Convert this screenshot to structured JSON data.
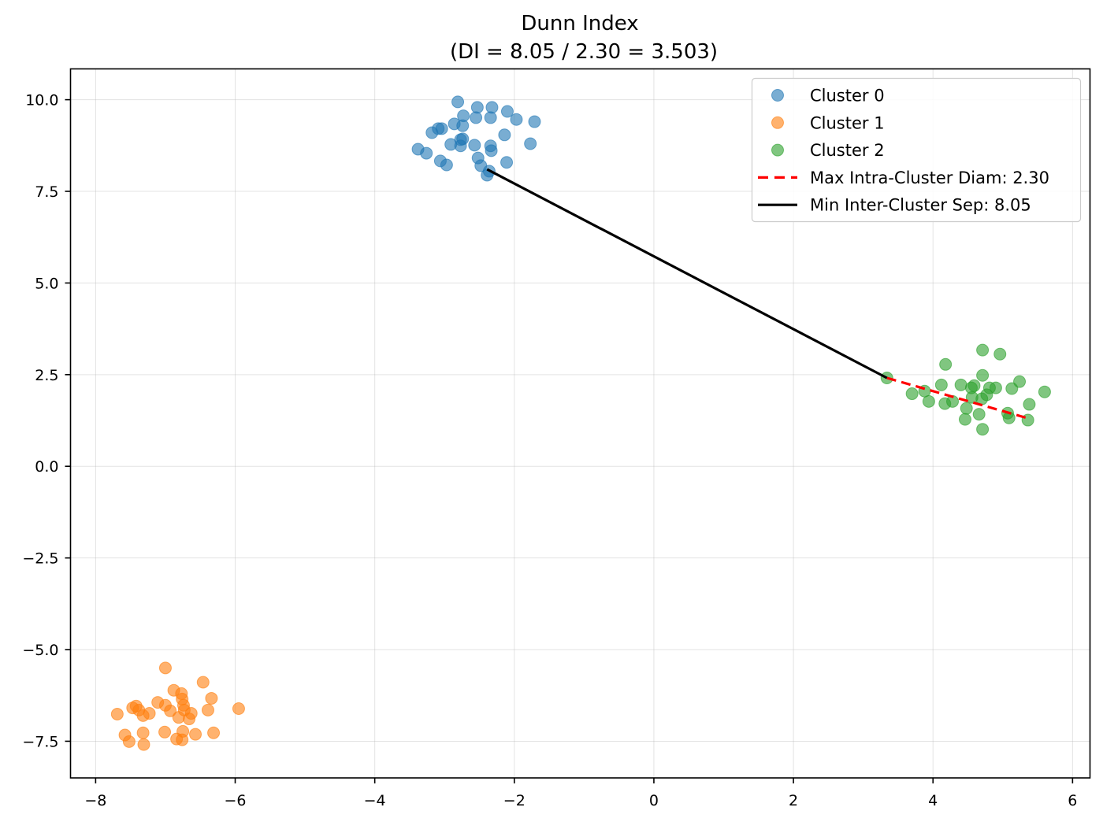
{
  "chart_data": {
    "type": "scatter",
    "title": "Dunn Index",
    "subtitle": "(DI = 8.05 / 2.30 = 3.503)",
    "xlabel": "",
    "ylabel": "",
    "xlim": [
      -8.36,
      6.25
    ],
    "ylim": [
      -8.5,
      10.84
    ],
    "grid": true,
    "legend_position": "upper right",
    "x_ticks": [
      -8,
      -6,
      -4,
      -2,
      0,
      2,
      4,
      6
    ],
    "x_tick_labels": [
      "−8",
      "−6",
      "−4",
      "−2",
      "0",
      "2",
      "4",
      "6"
    ],
    "y_ticks": [
      10.0,
      7.5,
      5.0,
      2.5,
      0.0,
      -2.5,
      -5.0,
      -7.5
    ],
    "y_tick_labels": [
      "10.0",
      "7.5",
      "5.0",
      "2.5",
      "0.0",
      "−2.5",
      "−5.0",
      "−7.5"
    ],
    "series": [
      {
        "name": "Cluster 0",
        "color": "#1f77b4",
        "points": [
          [
            -2.81,
            9.94
          ],
          [
            -2.53,
            9.79
          ],
          [
            -2.32,
            9.79
          ],
          [
            -2.1,
            9.68
          ],
          [
            -1.97,
            9.46
          ],
          [
            -1.71,
            9.4
          ],
          [
            -2.73,
            9.56
          ],
          [
            -2.55,
            9.51
          ],
          [
            -2.34,
            9.51
          ],
          [
            -2.86,
            9.34
          ],
          [
            -2.74,
            9.29
          ],
          [
            -3.04,
            9.21
          ],
          [
            -3.18,
            9.1
          ],
          [
            -3.09,
            9.21
          ],
          [
            -2.77,
            8.91
          ],
          [
            -2.14,
            9.04
          ],
          [
            -2.91,
            8.78
          ],
          [
            -2.77,
            8.74
          ],
          [
            -2.57,
            8.76
          ],
          [
            -2.34,
            8.74
          ],
          [
            -1.77,
            8.8
          ],
          [
            -3.38,
            8.65
          ],
          [
            -3.26,
            8.54
          ],
          [
            -2.33,
            8.61
          ],
          [
            -2.52,
            8.41
          ],
          [
            -3.06,
            8.33
          ],
          [
            -2.97,
            8.22
          ],
          [
            -2.48,
            8.2
          ],
          [
            -2.11,
            8.29
          ],
          [
            -2.36,
            8.05
          ],
          [
            -2.39,
            7.94
          ],
          [
            -2.74,
            8.93
          ]
        ]
      },
      {
        "name": "Cluster 1",
        "color": "#ff7f0e",
        "points": [
          [
            -7.0,
            -5.5
          ],
          [
            -6.46,
            -5.89
          ],
          [
            -6.88,
            -6.11
          ],
          [
            -6.77,
            -6.2
          ],
          [
            -6.34,
            -6.33
          ],
          [
            -7.11,
            -6.44
          ],
          [
            -7.0,
            -6.52
          ],
          [
            -6.76,
            -6.35
          ],
          [
            -6.74,
            -6.52
          ],
          [
            -7.42,
            -6.54
          ],
          [
            -7.38,
            -6.65
          ],
          [
            -7.47,
            -6.59
          ],
          [
            -7.23,
            -6.74
          ],
          [
            -7.32,
            -6.8
          ],
          [
            -7.69,
            -6.76
          ],
          [
            -6.93,
            -6.67
          ],
          [
            -6.73,
            -6.65
          ],
          [
            -6.63,
            -6.74
          ],
          [
            -6.39,
            -6.65
          ],
          [
            -5.95,
            -6.61
          ],
          [
            -6.81,
            -6.85
          ],
          [
            -6.66,
            -6.89
          ],
          [
            -7.58,
            -7.33
          ],
          [
            -7.32,
            -7.27
          ],
          [
            -7.01,
            -7.25
          ],
          [
            -6.75,
            -7.23
          ],
          [
            -6.57,
            -7.31
          ],
          [
            -6.31,
            -7.27
          ],
          [
            -7.52,
            -7.51
          ],
          [
            -6.84,
            -7.44
          ],
          [
            -6.76,
            -7.46
          ],
          [
            -7.31,
            -7.59
          ]
        ]
      },
      {
        "name": "Cluster 2",
        "color": "#2ca02c",
        "points": [
          [
            3.34,
            2.41
          ],
          [
            3.7,
            1.98
          ],
          [
            3.88,
            2.05
          ],
          [
            3.94,
            1.77
          ],
          [
            4.18,
            2.78
          ],
          [
            4.12,
            2.22
          ],
          [
            4.17,
            1.71
          ],
          [
            4.28,
            1.77
          ],
          [
            4.4,
            2.22
          ],
          [
            4.48,
            1.58
          ],
          [
            4.46,
            1.28
          ],
          [
            4.55,
            2.14
          ],
          [
            4.59,
            2.2
          ],
          [
            4.71,
            3.17
          ],
          [
            4.96,
            3.06
          ],
          [
            4.71,
            2.48
          ],
          [
            4.81,
            2.14
          ],
          [
            4.77,
            1.95
          ],
          [
            4.7,
            1.84
          ],
          [
            4.66,
            1.42
          ],
          [
            4.71,
            1.01
          ],
          [
            4.9,
            2.14
          ],
          [
            5.13,
            2.12
          ],
          [
            5.24,
            2.31
          ],
          [
            5.07,
            1.45
          ],
          [
            5.09,
            1.32
          ],
          [
            5.38,
            1.69
          ],
          [
            5.6,
            2.03
          ],
          [
            5.36,
            1.26
          ],
          [
            4.56,
            1.88
          ]
        ]
      }
    ],
    "lines": [
      {
        "name": "Max Intra-Cluster Diam: 2.30",
        "color": "#ff0000",
        "style": "dashed",
        "value": 2.3,
        "from": [
          3.34,
          2.41
        ],
        "to": [
          5.36,
          1.31
        ]
      },
      {
        "name": "Min Inter-Cluster Sep: 8.05",
        "color": "#000000",
        "style": "solid",
        "value": 8.05,
        "from": [
          -2.39,
          8.1
        ],
        "to": [
          3.34,
          2.41
        ]
      }
    ],
    "dunn_index": 3.503,
    "min_inter_cluster_separation": 8.05,
    "max_intra_cluster_diameter": 2.3
  },
  "legend": {
    "items": [
      {
        "label": "Cluster 0",
        "kind": "marker",
        "color": "#1f77b4"
      },
      {
        "label": "Cluster 1",
        "kind": "marker",
        "color": "#ff7f0e"
      },
      {
        "label": "Cluster 2",
        "kind": "marker",
        "color": "#2ca02c"
      },
      {
        "label": "Max Intra-Cluster Diam: 2.30",
        "kind": "dashed",
        "color": "#ff0000"
      },
      {
        "label": "Min Inter-Cluster Sep: 8.05",
        "kind": "solid",
        "color": "#000000"
      }
    ]
  }
}
